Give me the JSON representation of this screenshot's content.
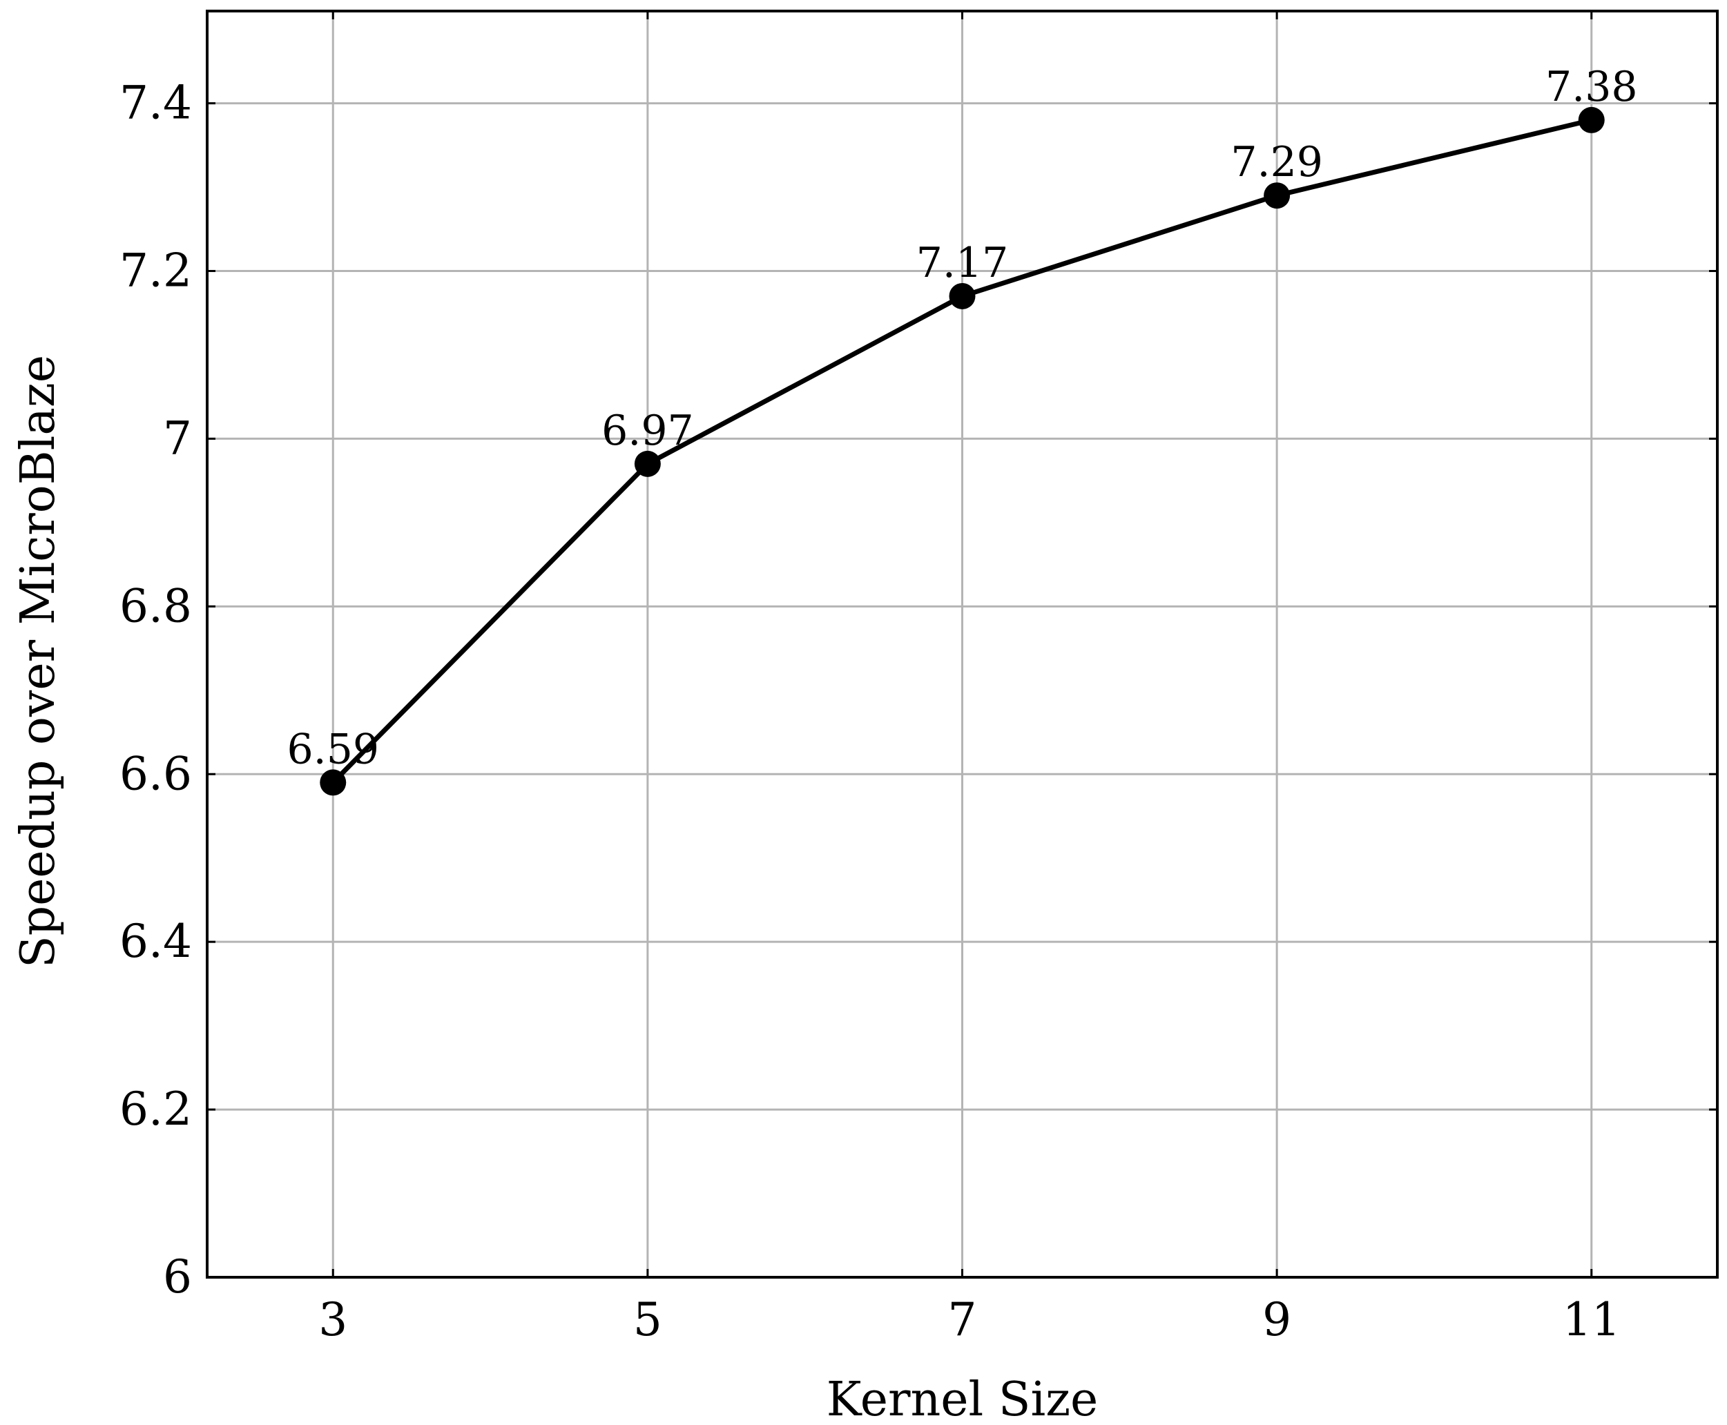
{
  "chart_data": {
    "type": "line",
    "title": "",
    "xlabel": "Kernel Size",
    "ylabel": "Speedup over MicroBlaze",
    "x": [
      3,
      5,
      7,
      9,
      11
    ],
    "series": [
      {
        "values": [
          6.59,
          6.97,
          7.17,
          7.29,
          7.38
        ],
        "data_labels": [
          "6.59",
          "6.97",
          "7.17",
          "7.29",
          "7.38"
        ],
        "color": "#000000",
        "marker": "circle"
      }
    ],
    "xticks": [
      3,
      5,
      7,
      9,
      11
    ],
    "xtick_labels": [
      "3",
      "5",
      "7",
      "9",
      "11"
    ],
    "yticks": [
      6,
      6.2,
      6.4,
      6.6,
      6.8,
      7,
      7.2,
      7.4
    ],
    "ytick_labels": [
      "6",
      "6.2",
      "6.4",
      "6.6",
      "6.8",
      "7",
      "7.2",
      "7.4"
    ],
    "xlim": [
      2.2,
      11.8
    ],
    "ylim": [
      6,
      7.51
    ],
    "grid": true,
    "legend": "none"
  }
}
